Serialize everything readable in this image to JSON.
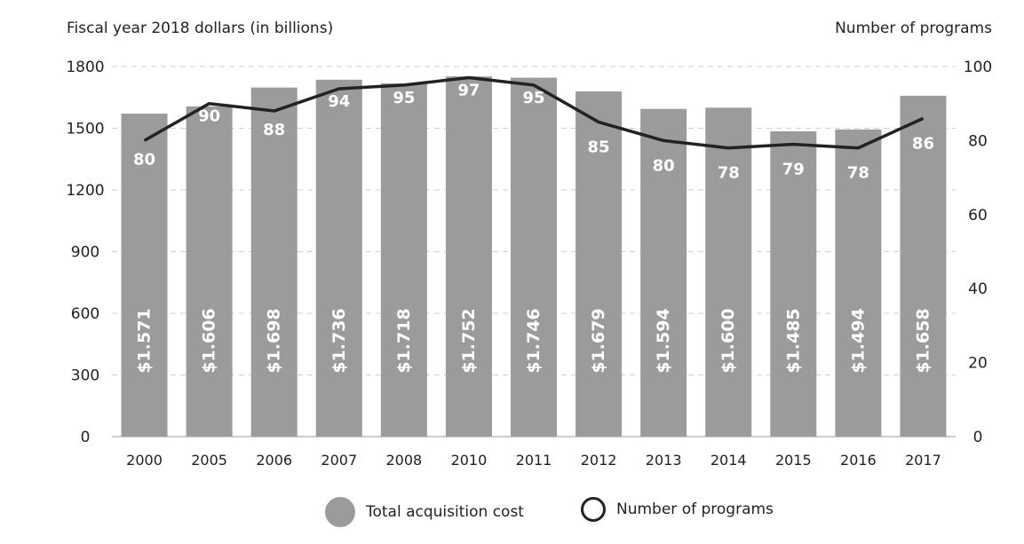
{
  "chart_data": {
    "type": "bar",
    "ylabel_left": "Fiscal year 2018 dollars (in billions)",
    "ylabel_right": "Number of programs",
    "categories": [
      "2000",
      "2005",
      "2006",
      "2007",
      "2008",
      "2010",
      "2011",
      "2012",
      "2013",
      "2014",
      "2015",
      "2016",
      "2017"
    ],
    "ylim_left": [
      0,
      1800
    ],
    "yticks_left": [
      0,
      300,
      600,
      900,
      1200,
      1500,
      1800
    ],
    "ylim_right": [
      0,
      100
    ],
    "yticks_right": [
      0,
      20,
      40,
      60,
      80,
      100
    ],
    "series": [
      {
        "name": "Total acquisition cost",
        "type": "bar",
        "axis": "left",
        "color": "#9b9b9b",
        "values": [
          1571,
          1606,
          1698,
          1736,
          1718,
          1752,
          1746,
          1679,
          1594,
          1600,
          1485,
          1494,
          1658
        ],
        "labels": [
          "$1.571",
          "$1.606",
          "$1.698",
          "$1.736",
          "$1.718",
          "$1.752",
          "$1.746",
          "$1.679",
          "$1.594",
          "$1.600",
          "$1.485",
          "$1.494",
          "$1.658"
        ]
      },
      {
        "name": "Number of programs",
        "type": "line",
        "axis": "right",
        "color": "#222222",
        "values": [
          80,
          90,
          88,
          94,
          95,
          97,
          95,
          85,
          80,
          78,
          79,
          78,
          86
        ]
      }
    ],
    "legend_position": "bottom-center",
    "grid": "dashed-horizontal"
  }
}
